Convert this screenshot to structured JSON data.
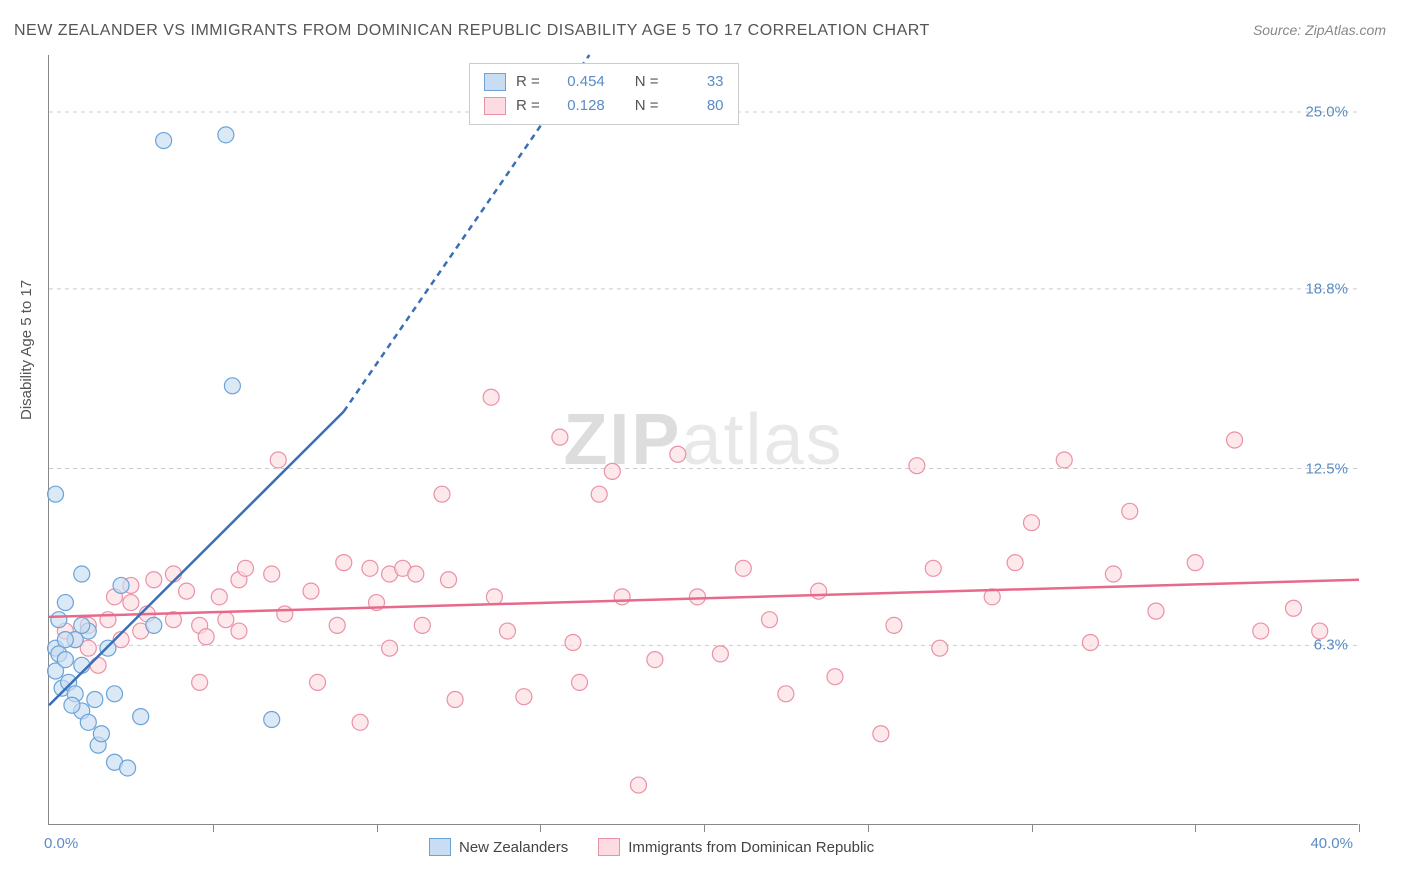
{
  "title": "NEW ZEALANDER VS IMMIGRANTS FROM DOMINICAN REPUBLIC DISABILITY AGE 5 TO 17 CORRELATION CHART",
  "source": "Source: ZipAtlas.com",
  "watermark_prefix": "ZIP",
  "watermark_suffix": "atlas",
  "ylabel": "Disability Age 5 to 17",
  "chart": {
    "type": "scatter",
    "xlim": [
      0,
      40
    ],
    "ylim": [
      0,
      27
    ],
    "xticks": [
      5,
      10,
      15,
      20,
      25,
      30,
      35,
      40
    ],
    "yticks": [
      6.3,
      12.5,
      18.8,
      25.0
    ],
    "ytick_labels": [
      "6.3%",
      "12.5%",
      "18.8%",
      "25.0%"
    ],
    "xmin_label": "0.0%",
    "xmax_label": "40.0%",
    "background_color": "#ffffff",
    "grid_color": "#cccccc",
    "axis_color": "#888888",
    "marker_radius": 8,
    "marker_stroke_width": 1.2,
    "trend_line_width": 2.5,
    "trend_dash": "6,5"
  },
  "series": {
    "blue": {
      "label": "New Zealanders",
      "fill": "#c8ddf2",
      "stroke": "#6aa3d8",
      "line_color": "#3a6fb7",
      "r_label": "R =",
      "r_value": "0.454",
      "n_label": "N =",
      "n_value": "33",
      "trend": {
        "x1": 0,
        "y1": 4.2,
        "x2_solid": 9,
        "y2_solid": 14.5,
        "x2_dash": 16.5,
        "y2_dash": 27
      },
      "points": [
        [
          0.2,
          6.2
        ],
        [
          0.3,
          6.0
        ],
        [
          0.2,
          5.4
        ],
        [
          0.4,
          4.8
        ],
        [
          0.5,
          5.8
        ],
        [
          0.6,
          5.0
        ],
        [
          0.3,
          7.2
        ],
        [
          0.5,
          7.8
        ],
        [
          0.8,
          4.6
        ],
        [
          1.0,
          4.0
        ],
        [
          1.2,
          3.6
        ],
        [
          1.2,
          6.8
        ],
        [
          1.5,
          2.8
        ],
        [
          1.0,
          5.6
        ],
        [
          0.7,
          4.2
        ],
        [
          1.6,
          3.2
        ],
        [
          2.0,
          2.2
        ],
        [
          2.4,
          2.0
        ],
        [
          2.0,
          4.6
        ],
        [
          2.2,
          8.4
        ],
        [
          1.0,
          8.8
        ],
        [
          0.2,
          11.6
        ],
        [
          1.4,
          4.4
        ],
        [
          0.8,
          6.5
        ],
        [
          2.8,
          3.8
        ],
        [
          6.8,
          3.7
        ],
        [
          3.2,
          7.0
        ],
        [
          3.5,
          24.0
        ],
        [
          5.4,
          24.2
        ],
        [
          5.6,
          15.4
        ],
        [
          1.8,
          6.2
        ],
        [
          1.0,
          7.0
        ],
        [
          0.5,
          6.5
        ]
      ]
    },
    "pink": {
      "label": "Immigrants from Dominican Republic",
      "fill": "#fcdbe2",
      "stroke": "#ea91a7",
      "line_color": "#e76a8c",
      "r_label": "R =",
      "r_value": "0.128",
      "n_label": "N =",
      "n_value": "80",
      "trend": {
        "x1": 0,
        "y1": 7.3,
        "x2_solid": 40,
        "y2_solid": 8.6
      },
      "points": [
        [
          0.5,
          6.8
        ],
        [
          0.8,
          6.5
        ],
        [
          1.2,
          7.0
        ],
        [
          1.2,
          6.2
        ],
        [
          1.5,
          5.6
        ],
        [
          1.8,
          7.2
        ],
        [
          2.0,
          8.0
        ],
        [
          2.2,
          6.5
        ],
        [
          2.5,
          7.8
        ],
        [
          2.5,
          8.4
        ],
        [
          2.8,
          6.8
        ],
        [
          3.0,
          7.4
        ],
        [
          3.2,
          8.6
        ],
        [
          3.8,
          7.2
        ],
        [
          3.8,
          8.8
        ],
        [
          4.2,
          8.2
        ],
        [
          4.6,
          7.0
        ],
        [
          4.6,
          5.0
        ],
        [
          4.8,
          6.6
        ],
        [
          5.2,
          8.0
        ],
        [
          5.4,
          7.2
        ],
        [
          5.8,
          6.8
        ],
        [
          5.8,
          8.6
        ],
        [
          6.0,
          9.0
        ],
        [
          6.8,
          8.8
        ],
        [
          7.0,
          12.8
        ],
        [
          7.2,
          7.4
        ],
        [
          8.0,
          8.2
        ],
        [
          8.2,
          5.0
        ],
        [
          8.8,
          7.0
        ],
        [
          9.0,
          9.2
        ],
        [
          9.5,
          3.6
        ],
        [
          9.8,
          9.0
        ],
        [
          10.0,
          7.8
        ],
        [
          10.4,
          8.8
        ],
        [
          10.4,
          6.2
        ],
        [
          10.8,
          9.0
        ],
        [
          11.2,
          8.8
        ],
        [
          11.4,
          7.0
        ],
        [
          12.0,
          11.6
        ],
        [
          12.2,
          8.6
        ],
        [
          12.4,
          4.4
        ],
        [
          13.5,
          15.0
        ],
        [
          13.6,
          8.0
        ],
        [
          14.0,
          6.8
        ],
        [
          14.5,
          4.5
        ],
        [
          15.6,
          13.6
        ],
        [
          16.0,
          6.4
        ],
        [
          16.2,
          5.0
        ],
        [
          16.8,
          11.6
        ],
        [
          17.2,
          12.4
        ],
        [
          17.5,
          8.0
        ],
        [
          18.0,
          1.4
        ],
        [
          18.5,
          5.8
        ],
        [
          19.2,
          13.0
        ],
        [
          19.8,
          8.0
        ],
        [
          20.5,
          6.0
        ],
        [
          21.2,
          9.0
        ],
        [
          22.0,
          7.2
        ],
        [
          22.5,
          4.6
        ],
        [
          23.5,
          8.2
        ],
        [
          24.0,
          5.2
        ],
        [
          25.4,
          3.2
        ],
        [
          25.8,
          7.0
        ],
        [
          26.5,
          12.6
        ],
        [
          27.0,
          9.0
        ],
        [
          27.2,
          6.2
        ],
        [
          28.8,
          8.0
        ],
        [
          29.5,
          9.2
        ],
        [
          30.0,
          10.6
        ],
        [
          31.0,
          12.8
        ],
        [
          31.8,
          6.4
        ],
        [
          32.5,
          8.8
        ],
        [
          33.0,
          11.0
        ],
        [
          33.8,
          7.5
        ],
        [
          35.0,
          9.2
        ],
        [
          36.2,
          13.5
        ],
        [
          37.0,
          6.8
        ],
        [
          38.0,
          7.6
        ],
        [
          38.8,
          6.8
        ]
      ]
    }
  }
}
